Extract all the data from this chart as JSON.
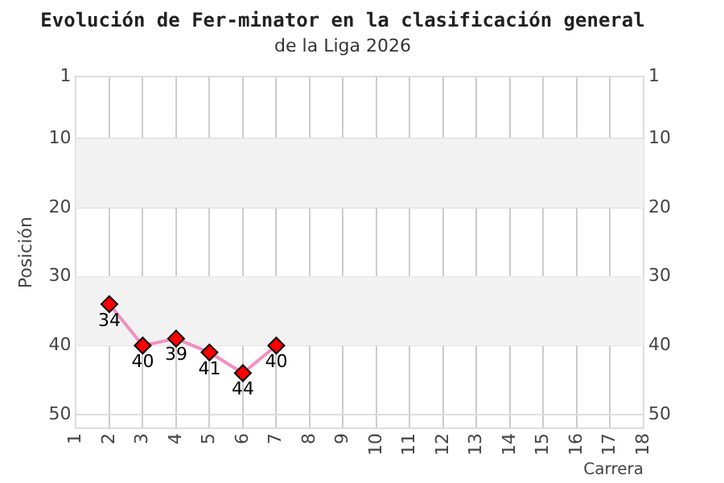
{
  "chart_data": {
    "type": "line",
    "title": "Evolución de Fer-minator en la clasificación general",
    "subtitle": "de la Liga 2026",
    "xlabel": "Carrera",
    "ylabel": "Posición",
    "x": [
      2,
      3,
      4,
      5,
      6,
      7
    ],
    "series": [
      {
        "color": "#f090c0",
        "colors": [
          "#ff0000",
          "#ff0000",
          "#ff0000",
          "#ff0000",
          "#ff0000",
          "#ff0000"
        ],
        "values": [
          34,
          40,
          39,
          41,
          44,
          40
        ]
      }
    ],
    "xlim": [
      1,
      18
    ],
    "xticks": [
      1,
      2,
      3,
      4,
      5,
      6,
      7,
      8,
      9,
      10,
      11,
      12,
      13,
      14,
      15,
      16,
      17,
      18
    ],
    "ylim": [
      52,
      1
    ],
    "yticks": [
      1,
      10,
      20,
      30,
      40,
      50
    ],
    "y2lim": [
      52,
      1
    ],
    "y2ticks": [
      1,
      10,
      20,
      30,
      40,
      50
    ],
    "bands": [
      {
        "axis": "y",
        "from": 10,
        "to": 20,
        "color": "#f2f2f2"
      },
      {
        "axis": "y",
        "from": 30,
        "to": 40,
        "color": "#f2f2f2"
      }
    ],
    "grid": true,
    "legend": false,
    "marker": "diamond",
    "line_style": "solid",
    "data_labels": true
  }
}
